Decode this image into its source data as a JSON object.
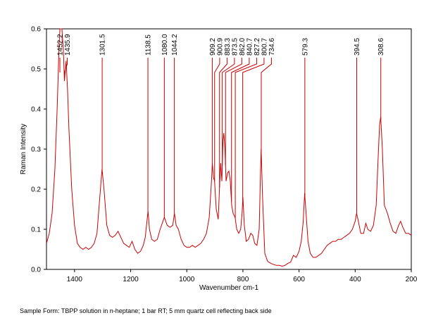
{
  "chart_data": {
    "type": "line",
    "x_label": "Wavenumber cm-1",
    "y_label": "Raman Intensity",
    "footnote": "Sample Form:  TBPP solution in n-heptane; 1 bar RT; 5 mm quartz cell reflecting back side",
    "color": "#cc0000",
    "xlim": [
      1500,
      200
    ],
    "xticks": [
      1400,
      1200,
      1000,
      800,
      600,
      400,
      200
    ],
    "ylim": [
      0,
      0.6
    ],
    "yticks": [
      {
        "value": 0,
        "label": "0.0"
      },
      0.1,
      0.2,
      0.3,
      0.4,
      0.5,
      0.6
    ],
    "peaks": [
      {
        "value": 1452.2,
        "label": "1452.2"
      },
      {
        "value": 1435.9,
        "label": "1435.9"
      },
      {
        "value": 1301.5,
        "label": "1301.5"
      },
      {
        "value": 1138.5,
        "label": "1138.5"
      },
      {
        "value": 1080.0,
        "label": "1080.0"
      },
      {
        "value": 1044.2,
        "label": "1044.2"
      },
      {
        "value": 909.2,
        "label": "909.2"
      },
      {
        "value": 900.9,
        "label": "900.9"
      },
      {
        "value": 883.3,
        "label": "883.3"
      },
      {
        "value": 873.5,
        "label": "873.5"
      },
      {
        "value": 862.0,
        "label": "862.0"
      },
      {
        "value": 840.7,
        "label": "840.7"
      },
      {
        "value": 827.2,
        "label": "827.2"
      },
      {
        "value": 800.7,
        "label": "800.7"
      },
      {
        "value": 734.6,
        "label": "734.6"
      },
      {
        "value": 579.3,
        "label": "579.3"
      },
      {
        "value": 394.5,
        "label": "394.5"
      },
      {
        "value": 308.6,
        "label": "308.6"
      }
    ],
    "x": [
      1500,
      1490,
      1480,
      1470,
      1462,
      1455,
      1452,
      1445,
      1440,
      1436,
      1430,
      1425,
      1420,
      1410,
      1400,
      1390,
      1380,
      1370,
      1360,
      1350,
      1340,
      1330,
      1320,
      1310,
      1302,
      1295,
      1285,
      1275,
      1265,
      1255,
      1245,
      1235,
      1225,
      1215,
      1205,
      1195,
      1185,
      1175,
      1165,
      1155,
      1148,
      1142,
      1138,
      1133,
      1125,
      1115,
      1105,
      1095,
      1085,
      1080,
      1070,
      1060,
      1050,
      1044,
      1038,
      1030,
      1020,
      1010,
      1000,
      990,
      980,
      970,
      960,
      950,
      940,
      930,
      920,
      912,
      909,
      905,
      901,
      895,
      888,
      883,
      879,
      875,
      871,
      868,
      864,
      860,
      855,
      850,
      845,
      840,
      835,
      828,
      822,
      815,
      808,
      803,
      800,
      795,
      788,
      780,
      772,
      765,
      758,
      750,
      742,
      738,
      735,
      730,
      722,
      712,
      700,
      690,
      680,
      670,
      660,
      650,
      640,
      630,
      620,
      610,
      600,
      592,
      585,
      580,
      575,
      568,
      560,
      550,
      540,
      530,
      520,
      510,
      500,
      490,
      480,
      470,
      460,
      450,
      440,
      430,
      420,
      410,
      400,
      395,
      390,
      380,
      370,
      362,
      355,
      345,
      335,
      325,
      318,
      313,
      309,
      303,
      296,
      285,
      275,
      265,
      255,
      245,
      238,
      230,
      220,
      210,
      200
    ],
    "values": [
      0.065,
      0.09,
      0.14,
      0.25,
      0.4,
      0.56,
      0.6,
      0.6,
      0.55,
      0.47,
      0.52,
      0.45,
      0.35,
      0.2,
      0.11,
      0.065,
      0.055,
      0.05,
      0.055,
      0.05,
      0.055,
      0.065,
      0.09,
      0.18,
      0.25,
      0.2,
      0.11,
      0.085,
      0.08,
      0.085,
      0.095,
      0.08,
      0.065,
      0.06,
      0.055,
      0.07,
      0.05,
      0.04,
      0.045,
      0.06,
      0.08,
      0.12,
      0.145,
      0.1,
      0.075,
      0.07,
      0.075,
      0.1,
      0.12,
      0.13,
      0.11,
      0.105,
      0.11,
      0.14,
      0.11,
      0.1,
      0.075,
      0.06,
      0.055,
      0.055,
      0.06,
      0.055,
      0.06,
      0.065,
      0.075,
      0.09,
      0.13,
      0.22,
      0.265,
      0.23,
      0.22,
      0.15,
      0.125,
      0.21,
      0.265,
      0.22,
      0.32,
      0.34,
      0.3,
      0.22,
      0.24,
      0.245,
      0.22,
      0.16,
      0.14,
      0.13,
      0.1,
      0.09,
      0.1,
      0.14,
      0.18,
      0.11,
      0.07,
      0.075,
      0.09,
      0.085,
      0.065,
      0.06,
      0.1,
      0.22,
      0.3,
      0.18,
      0.04,
      0.02,
      0.015,
      0.012,
      0.01,
      0.01,
      0.008,
      0.01,
      0.015,
      0.018,
      0.035,
      0.03,
      0.045,
      0.07,
      0.12,
      0.19,
      0.14,
      0.07,
      0.04,
      0.03,
      0.03,
      0.035,
      0.04,
      0.05,
      0.06,
      0.065,
      0.07,
      0.07,
      0.075,
      0.075,
      0.08,
      0.085,
      0.09,
      0.1,
      0.12,
      0.14,
      0.125,
      0.09,
      0.09,
      0.115,
      0.1,
      0.095,
      0.11,
      0.16,
      0.28,
      0.36,
      0.38,
      0.3,
      0.16,
      0.14,
      0.115,
      0.095,
      0.09,
      0.11,
      0.12,
      0.105,
      0.09,
      0.09,
      0.085
    ]
  }
}
